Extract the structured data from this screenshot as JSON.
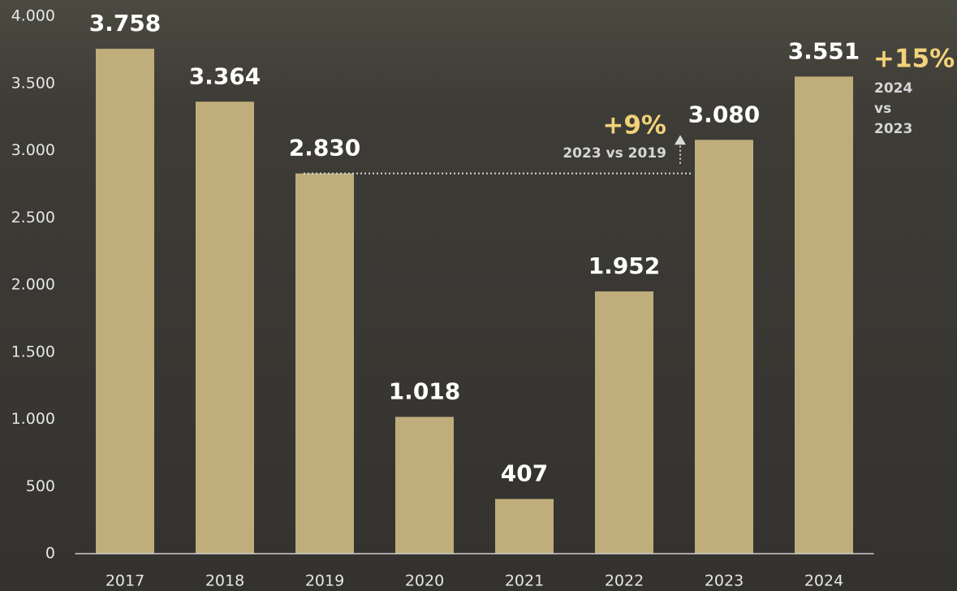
{
  "chart_data": {
    "type": "bar",
    "categories": [
      "2017",
      "2018",
      "2019",
      "2020",
      "2021",
      "2022",
      "2023",
      "2024"
    ],
    "values": [
      3758,
      3364,
      2830,
      1018,
      407,
      1952,
      3080,
      3551
    ],
    "value_labels": [
      "3.758",
      "3.364",
      "2.830",
      "1.018",
      "407",
      "1.952",
      "3.080",
      "3.551"
    ],
    "color": "#bfae7c",
    "ylim": [
      0,
      4000
    ],
    "yticks": [
      0,
      500,
      {
        "value": 1000,
        "label": "1.000"
      },
      {
        "value": 1500,
        "label": "1.500"
      },
      {
        "value": 2000,
        "label": "2.000"
      },
      {
        "value": 2500,
        "label": "2.500"
      },
      {
        "value": 3000,
        "label": "3.000"
      },
      {
        "value": 3500,
        "label": "3.500"
      },
      {
        "value": 4000,
        "label": "4.000"
      }
    ],
    "annotations": [
      {
        "text": "+9%",
        "subtext": [
          "2023 vs 2019"
        ]
      },
      {
        "text": "+15%",
        "subtext": [
          "2024",
          "vs",
          "2023"
        ]
      }
    ]
  }
}
